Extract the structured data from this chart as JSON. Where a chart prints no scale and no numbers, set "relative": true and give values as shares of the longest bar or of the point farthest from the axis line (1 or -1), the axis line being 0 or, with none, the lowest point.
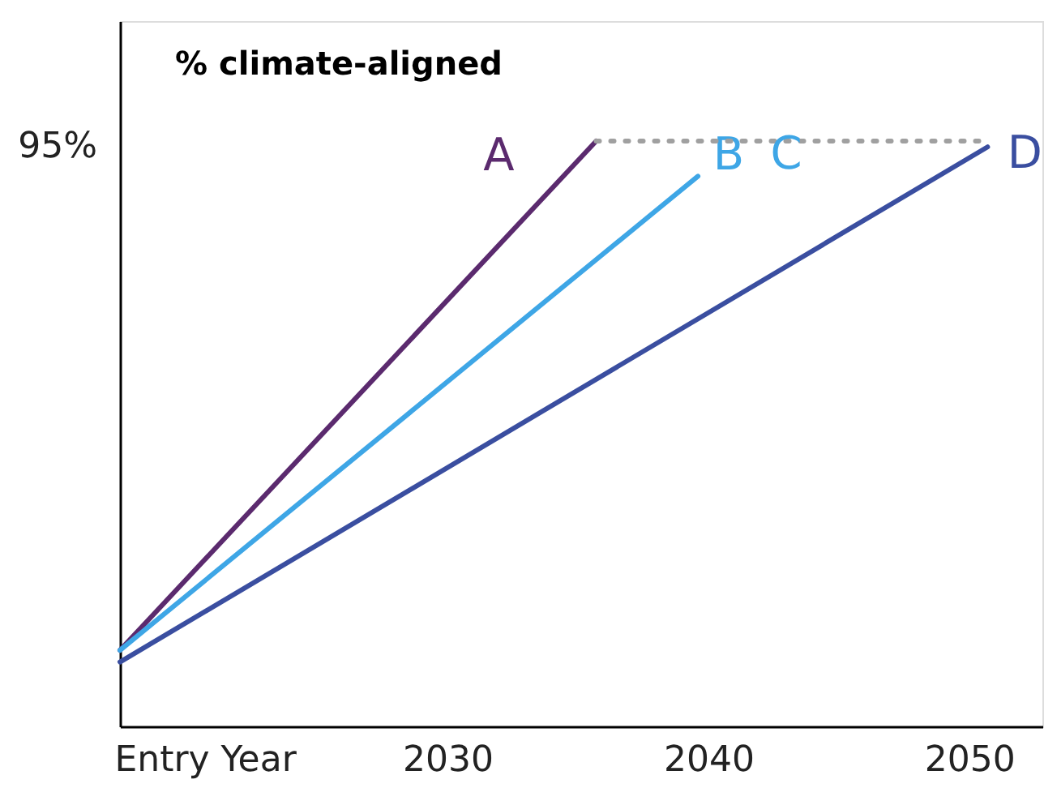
{
  "chart_data": {
    "type": "line",
    "title": "% climate-aligned",
    "relative": true,
    "xlim": [
      2017.45,
      2052.8
    ],
    "xticks": [
      {
        "value": 2020.7,
        "label": "Entry Year"
      },
      2030,
      2040,
      2050
    ],
    "series": [
      {
        "name": "A",
        "color": "#5b2a6e",
        "x": [
          2017.45,
          2035.7
        ],
        "values": [
          0.13,
          1
        ]
      },
      {
        "name": "B",
        "color": "#3ea6e6",
        "x": [
          2017.45,
          2039.6
        ],
        "values": [
          0.13,
          0.94
        ]
      },
      {
        "name": "D",
        "color": "#3a4ea0",
        "x": [
          2017.45,
          2050.7
        ],
        "values": [
          0.11,
          0.99
        ]
      },
      {
        "color": "#a0a0a0",
        "line_style": "dotted",
        "x": [
          2035.7,
          2050.7
        ],
        "values": [
          1,
          1
        ]
      }
    ],
    "annotations": [
      "95%",
      "C"
    ],
    "grid": false,
    "marker": "none"
  }
}
